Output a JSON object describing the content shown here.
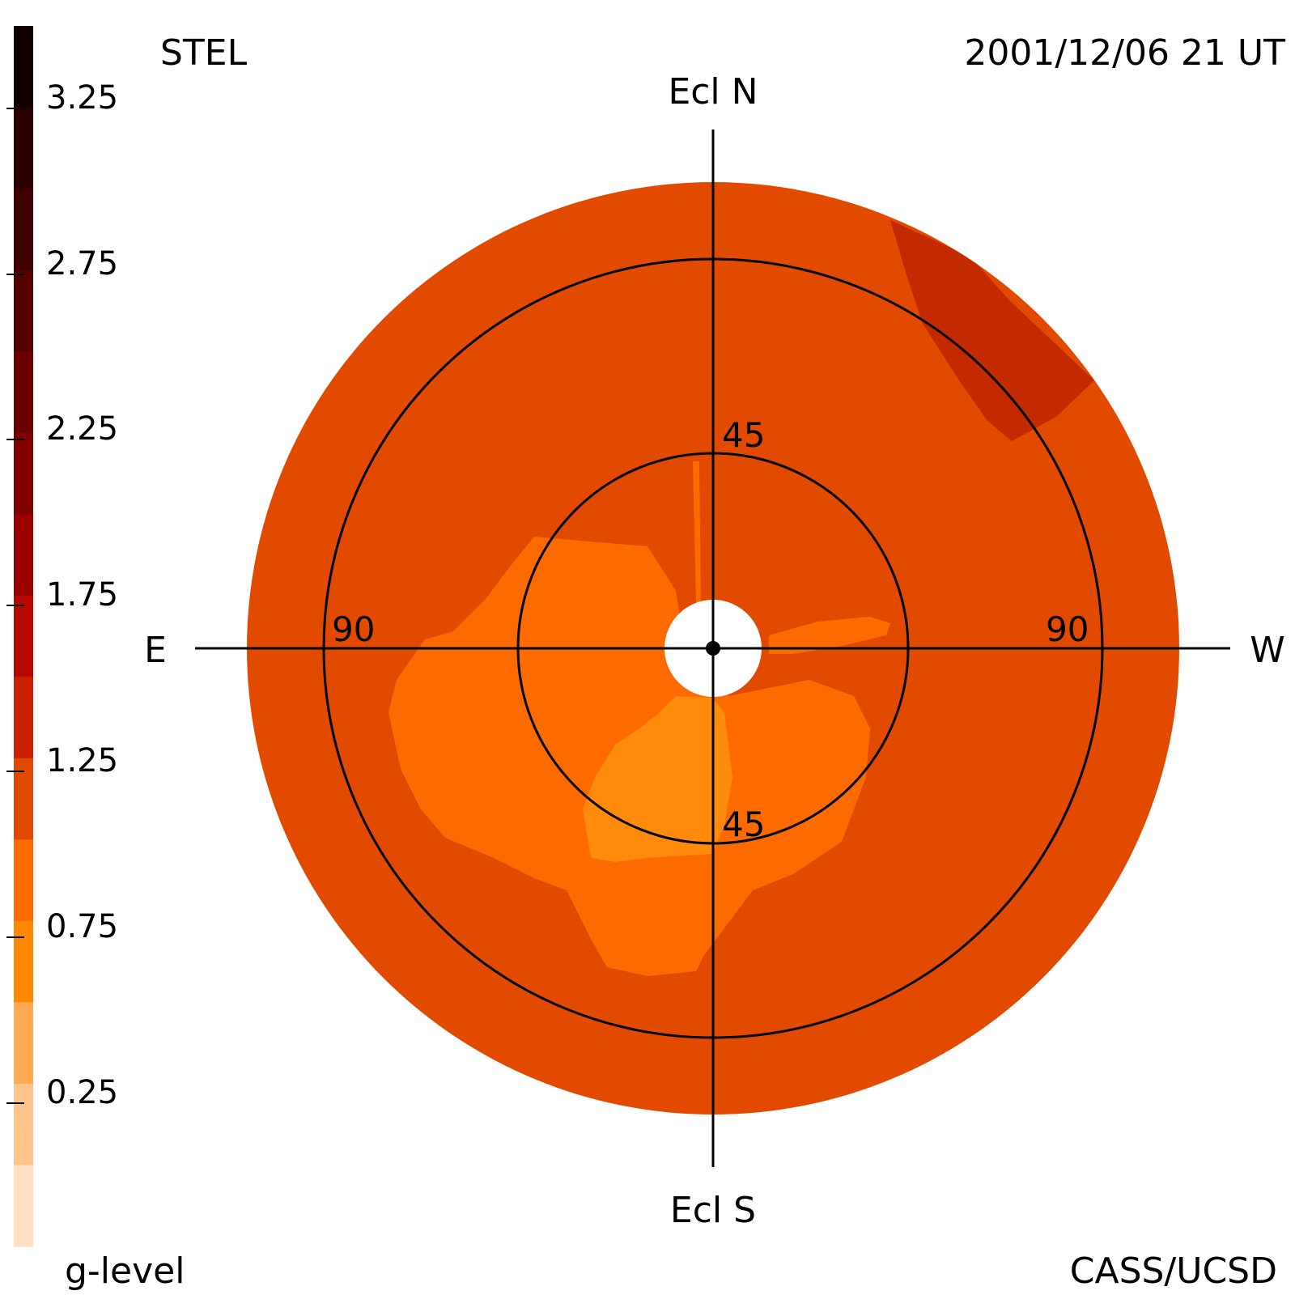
{
  "header": {
    "instrument": "STEL",
    "timestamp": "2001/12/06 21 UT"
  },
  "footer": {
    "colorbar_label": "g-level",
    "credit": "CASS/UCSD"
  },
  "directions": {
    "north": "Ecl N",
    "south": "Ecl S",
    "east": "E",
    "west": "W"
  },
  "ring_labels": {
    "inner_north": "45",
    "inner_south": "45",
    "outer_east": "90",
    "outer_west": "90"
  },
  "colorbar": {
    "ticks": [
      "3.25",
      "2.75",
      "2.25",
      "1.75",
      "1.25",
      "0.75",
      "0.25"
    ],
    "colors_top_to_bottom": [
      "#120000",
      "#2a0000",
      "#3e0000",
      "#520000",
      "#6a0000",
      "#800000",
      "#9a0000",
      "#b40800",
      "#c82000",
      "#e04a00",
      "#ff6a00",
      "#ff8800",
      "#ffaa55",
      "#ffc48a",
      "#ffe0c4"
    ]
  },
  "map_colors": {
    "background_level": "#e24a00",
    "high_level": "#c42a00",
    "mid_level": "#fc6a00",
    "low_level": "#ff8a0c",
    "occulter": "#ffffff",
    "lines": "#000000"
  }
}
